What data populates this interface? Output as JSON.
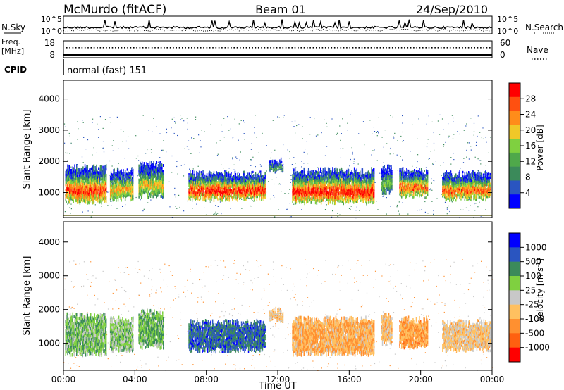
{
  "header": {
    "station": "McMurdo (fitACF)",
    "beam": "Beam 01",
    "date": "24/Sep/2010"
  },
  "noise_panel": {
    "left_label": "N.Sky",
    "right_label": "N.Search",
    "left_ticks": [
      "10^5",
      "10^0"
    ],
    "right_ticks": [
      "10^5",
      "10^0"
    ]
  },
  "freq_panel": {
    "left_label_line1": "Freq.",
    "left_label_line2": "[MHz]",
    "left_ticks": [
      "18",
      "8"
    ],
    "right_label": "Nave",
    "right_ticks": [
      "60",
      "0"
    ]
  },
  "cpid_panel": {
    "label": "CPID",
    "program": "normal (fast) 151"
  },
  "colors": {
    "power_scale": [
      "#0000ff",
      "#2a55c0",
      "#3b8a5a",
      "#4fa84a",
      "#7fd040",
      "#f0c828",
      "#ff8c1a",
      "#ff5010",
      "#ff0000"
    ],
    "velocity_scale": [
      "#ff0000",
      "#ff6010",
      "#ff9030",
      "#ffc060",
      "#c8c8c8",
      "#7fd040",
      "#3b8a5a",
      "#2a55c0",
      "#0000ff"
    ],
    "ground_scatter": "#8c8c5a"
  },
  "chart_data": [
    {
      "type": "heatmap",
      "panel": "power",
      "xlabel": "",
      "ylabel": "Slant Range [km]",
      "xlim": [
        "00:00",
        "24:00"
      ],
      "ylim": [
        200,
        4600
      ],
      "yticks": [
        "1000",
        "2000",
        "3000",
        "4000"
      ],
      "colorbar_label": "Power [dB]",
      "colorbar_ticks": [
        "4",
        "8",
        "12",
        "16",
        "20",
        "24",
        "28"
      ],
      "colorbar_range": [
        0,
        30
      ],
      "scatter_bands": [
        {
          "start": 0.1,
          "end": 2.4,
          "range_low": 700,
          "range_high": 1800,
          "peak_db": 28
        },
        {
          "start": 2.6,
          "end": 3.9,
          "range_low": 800,
          "range_high": 1700,
          "peak_db": 22
        },
        {
          "start": 4.2,
          "end": 5.6,
          "range_low": 900,
          "range_high": 1900,
          "peak_db": 20
        },
        {
          "start": 7.0,
          "end": 11.3,
          "range_low": 800,
          "range_high": 1600,
          "peak_db": 30
        },
        {
          "start": 11.5,
          "end": 12.3,
          "range_low": 1700,
          "range_high": 2000,
          "peak_db": 12
        },
        {
          "start": 12.8,
          "end": 17.4,
          "range_low": 700,
          "range_high": 1700,
          "peak_db": 30
        },
        {
          "start": 17.8,
          "end": 18.4,
          "range_low": 1000,
          "range_high": 1800,
          "peak_db": 14
        },
        {
          "start": 18.8,
          "end": 20.4,
          "range_low": 900,
          "range_high": 1700,
          "peak_db": 26
        },
        {
          "start": 21.2,
          "end": 23.9,
          "range_low": 800,
          "range_high": 1600,
          "peak_db": 26
        }
      ]
    },
    {
      "type": "heatmap",
      "panel": "velocity",
      "xlabel": "Time UT",
      "ylabel": "Slant Range [km]",
      "xlim": [
        "00:00",
        "24:00"
      ],
      "xticks": [
        "00:00",
        "04:00",
        "08:00",
        "12:00",
        "16:00",
        "20:00",
        "00:00"
      ],
      "ylim": [
        200,
        4600
      ],
      "yticks": [
        "1000",
        "2000",
        "3000",
        "4000"
      ],
      "colorbar_label": "Velocity [m s^-1]",
      "colorbar_ticks": [
        "1000",
        "500",
        "100",
        "25",
        "-25",
        "-100",
        "-500",
        "-1000"
      ],
      "colorbar_range": [
        -1000,
        1000
      ],
      "scatter_bands": [
        {
          "start": 0.1,
          "end": 2.4,
          "range_low": 700,
          "range_high": 1800,
          "velocity": 250
        },
        {
          "start": 2.6,
          "end": 3.9,
          "range_low": 800,
          "range_high": 1700,
          "velocity": 200
        },
        {
          "start": 4.2,
          "end": 5.6,
          "range_low": 900,
          "range_high": 1900,
          "velocity": 300
        },
        {
          "start": 7.0,
          "end": 11.3,
          "range_low": 800,
          "range_high": 1600,
          "velocity": 600
        },
        {
          "start": 11.5,
          "end": 12.3,
          "range_low": 1700,
          "range_high": 2000,
          "velocity": -150
        },
        {
          "start": 12.8,
          "end": 17.4,
          "range_low": 700,
          "range_high": 1700,
          "velocity": -300
        },
        {
          "start": 17.8,
          "end": 18.4,
          "range_low": 1000,
          "range_high": 1800,
          "velocity": -200
        },
        {
          "start": 18.8,
          "end": 20.4,
          "range_low": 900,
          "range_high": 1700,
          "velocity": -350
        },
        {
          "start": 21.2,
          "end": 23.9,
          "range_low": 800,
          "range_high": 1600,
          "velocity": -150
        }
      ]
    }
  ]
}
